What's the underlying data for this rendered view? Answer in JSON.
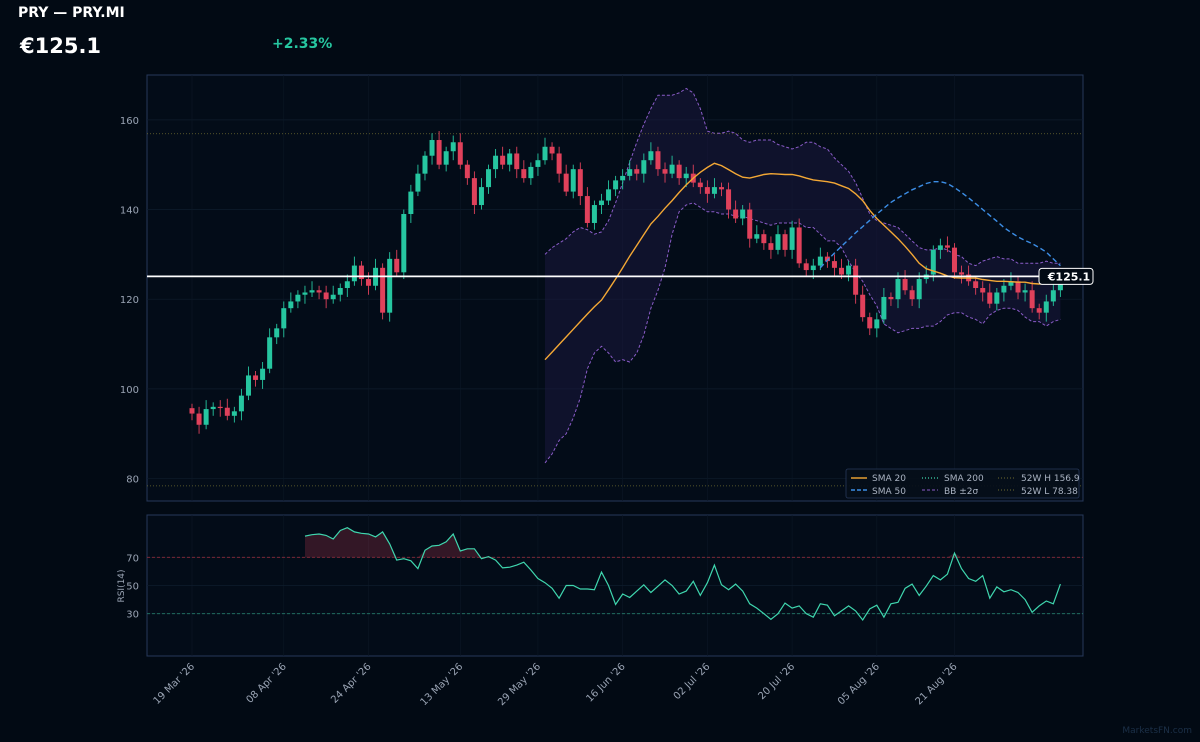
{
  "header": {
    "title": "PRY — PRY.MI",
    "price": "€125.1",
    "change": "+2.33%"
  },
  "watermark": "MarketsFN.com",
  "colors": {
    "background": "#020a14",
    "up": "#26c6a0",
    "down": "#e0415b",
    "sma20": "#f4a835",
    "sma50": "#3c8ee6",
    "bollinger": "#8a5cc8",
    "rsi": "#3fd6ae",
    "last_price": "#ffffff"
  },
  "chart_data": [
    {
      "type": "candlestick",
      "panel": "price",
      "x_tick_labels": [
        "19 Mar '26",
        "08 Apr '26",
        "24 Apr '26",
        "13 May '26",
        "29 May '26",
        "16 Jun '26",
        "02 Jul '26",
        "20 Jul '26",
        "05 Aug '26",
        "21 Aug '26"
      ],
      "y_ticks": [
        80,
        100,
        120,
        140,
        160
      ],
      "ylim": [
        75,
        170
      ],
      "last_price": 125.1,
      "last_price_label": "€125.1",
      "high_52w": 156.9,
      "low_52w": 78.38,
      "close": [
        94.5,
        92.0,
        95.5,
        96.0,
        95.8,
        94.0,
        95.0,
        98.5,
        103.0,
        102.0,
        104.5,
        111.5,
        113.5,
        118.0,
        119.5,
        121.0,
        121.5,
        122.0,
        121.5,
        120.0,
        121.0,
        122.5,
        124.0,
        127.5,
        124.5,
        123.0,
        127.0,
        117.0,
        129.0,
        126.0,
        139.0,
        144.0,
        148.0,
        152.0,
        155.5,
        150.0,
        153.0,
        155.0,
        150.0,
        147.0,
        141.0,
        145.0,
        149.0,
        152.0,
        150.0,
        152.5,
        149.0,
        147.0,
        149.5,
        151.0,
        154.0,
        152.5,
        148.0,
        144.0,
        149.0,
        143.0,
        137.0,
        141.0,
        142.0,
        144.5,
        146.5,
        147.5,
        149.0,
        148.0,
        151.0,
        153.0,
        149.0,
        148.0,
        150.0,
        147.0,
        148.0,
        146.0,
        145.0,
        143.5,
        145.0,
        144.5,
        140.0,
        138.0,
        140.0,
        133.5,
        134.5,
        132.5,
        131.0,
        134.5,
        131.0,
        136.0,
        128.0,
        126.5,
        127.5,
        129.5,
        128.5,
        127.0,
        125.5,
        127.5,
        121.0,
        116.0,
        113.5,
        115.5,
        120.5,
        120.0,
        124.5,
        122.0,
        120.0,
        124.5,
        125.5,
        131.0,
        132.0,
        131.5,
        126.0,
        125.5,
        124.0,
        122.5,
        121.5,
        119.0,
        121.5,
        123.0,
        124.0,
        121.5,
        122.0,
        118.0,
        117.0,
        119.5,
        122.0,
        125.1
      ],
      "sma20": [
        106.5,
        108.2,
        109.9,
        111.6,
        113.3,
        115.0,
        116.7,
        118.3,
        119.8,
        122.1,
        124.5,
        127.0,
        129.6,
        132.0,
        134.4,
        136.8,
        138.5,
        140.3,
        142.0,
        143.8,
        145.5,
        147.0,
        148.3,
        149.4,
        150.3,
        149.8,
        148.9,
        148.0,
        147.2,
        147.0,
        147.4,
        147.8,
        148.0,
        147.9,
        147.8,
        147.8,
        147.5,
        147.0,
        146.6,
        146.4,
        146.2,
        145.9,
        145.3,
        144.7,
        143.5,
        142.0,
        139.8,
        138.0,
        136.5,
        135.0,
        133.5,
        131.8,
        130.0,
        128.0,
        126.8,
        126.3,
        125.8,
        125.2,
        124.8,
        124.7,
        124.7,
        124.7,
        124.4,
        124.2,
        124.0,
        124.0,
        123.9,
        123.8,
        123.8,
        123.5,
        123.4,
        123.5,
        123.5,
        123.9
      ],
      "sma50": [
        127.0,
        128.7,
        130.3,
        131.8,
        133.3,
        134.8,
        136.2,
        137.6,
        139.0,
        140.3,
        141.6,
        142.6,
        143.5,
        144.4,
        145.1,
        145.8,
        146.2,
        146.2,
        145.8,
        144.9,
        143.8,
        142.6,
        141.3,
        140.0,
        138.7,
        137.4,
        136.0,
        134.9,
        133.9,
        133.1,
        132.4,
        131.5,
        130.5,
        129.0,
        127.5
      ],
      "bb_upper": [
        130.0,
        131.5,
        132.5,
        133.5,
        135.0,
        136.0,
        135.5,
        134.5,
        135.0,
        137.5,
        141.5,
        146.0,
        150.5,
        155.0,
        159.0,
        162.5,
        165.5,
        165.5,
        165.5,
        166.0,
        167.0,
        166.0,
        162.5,
        157.5,
        157.0,
        157.0,
        157.5,
        157.0,
        155.5,
        155.0,
        155.5,
        155.5,
        155.5,
        154.5,
        154.0,
        153.5,
        154.0,
        155.0,
        155.0,
        154.0,
        153.5,
        151.5,
        150.0,
        148.5,
        146.0,
        142.5,
        139.0,
        137.5,
        137.0,
        136.5,
        136.0,
        134.5,
        133.0,
        131.5,
        131.0,
        131.0,
        131.5,
        131.0,
        130.0,
        129.5,
        128.0,
        127.5,
        128.5,
        129.0,
        129.5,
        129.0,
        129.0,
        128.0,
        128.0,
        128.0,
        128.0,
        128.5,
        128.0,
        128.0
      ],
      "bb_lower": [
        83.5,
        85.5,
        88.5,
        90.0,
        93.5,
        98.0,
        104.5,
        108.0,
        109.5,
        108.0,
        106.0,
        106.5,
        106.0,
        108.0,
        112.0,
        118.0,
        122.0,
        127.0,
        134.5,
        139.5,
        141.0,
        141.5,
        140.5,
        139.5,
        139.5,
        139.0,
        139.0,
        138.5,
        138.5,
        138.0,
        137.5,
        137.0,
        136.5,
        137.0,
        137.0,
        137.0,
        137.0,
        136.0,
        136.0,
        134.5,
        133.0,
        133.0,
        131.5,
        128.5,
        126.0,
        124.0,
        121.0,
        118.5,
        114.5,
        113.5,
        112.5,
        113.0,
        113.5,
        113.5,
        114.0,
        114.0,
        115.0,
        116.5,
        117.0,
        117.0,
        116.0,
        115.5,
        114.5,
        116.5,
        117.5,
        118.0,
        118.0,
        117.5,
        116.0,
        115.0,
        115.0,
        114.0,
        115.0,
        115.5
      ],
      "legend": [
        "SMA 20",
        "SMA 50",
        "SMA 200",
        "BB ±2σ",
        "52W H 156.9",
        "52W L 78.38"
      ],
      "legend_position": "bottom-right"
    },
    {
      "type": "line",
      "panel": "rsi",
      "ylabel": "RSI(14)",
      "y_ticks": [
        30,
        50,
        70
      ],
      "ylim": [
        0,
        100
      ],
      "overbought": 70,
      "oversold": 30,
      "values": [
        85.0,
        86.0,
        86.5,
        85.5,
        83.0,
        89.0,
        91.0,
        88.0,
        87.0,
        86.5,
        84.5,
        88.0,
        79.5,
        68.0,
        69.0,
        67.5,
        62.0,
        75.0,
        78.0,
        78.5,
        81.0,
        86.5,
        74.5,
        76.0,
        76.0,
        69.0,
        70.5,
        68.0,
        62.5,
        63.0,
        64.5,
        66.5,
        61.0,
        55.0,
        52.0,
        48.0,
        41.0,
        50.0,
        50.0,
        47.5,
        47.5,
        47.0,
        59.5,
        50.0,
        36.5,
        44.0,
        41.5,
        46.0,
        50.5,
        45.0,
        49.5,
        54.0,
        50.0,
        44.0,
        46.0,
        53.0,
        43.0,
        52.0,
        64.5,
        50.5,
        47.0,
        51.0,
        46.0,
        37.0,
        34.0,
        30.0,
        26.0,
        30.0,
        37.5,
        34.0,
        35.5,
        30.0,
        27.5,
        37.0,
        36.0,
        28.5,
        32.0,
        35.5,
        32.0,
        25.5,
        33.5,
        36.0,
        27.5,
        37.0,
        38.0,
        48.0,
        51.0,
        43.0,
        49.5,
        57.0,
        54.0,
        58.0,
        73.0,
        62.0,
        55.0,
        53.0,
        57.0,
        41.0,
        49.0,
        45.5,
        47.0,
        45.0,
        40.0,
        31.0,
        35.5,
        39.0,
        37.0,
        51.0
      ]
    }
  ]
}
